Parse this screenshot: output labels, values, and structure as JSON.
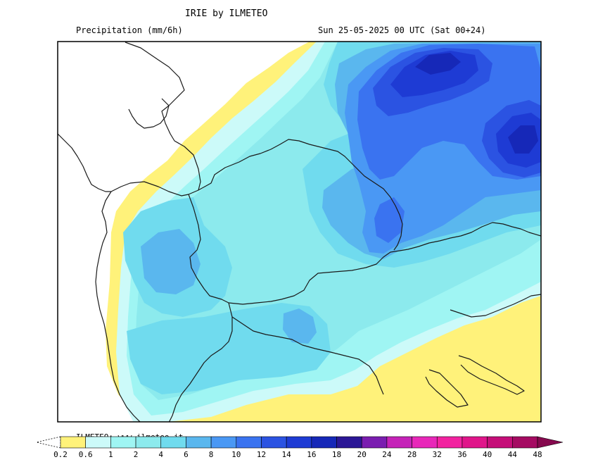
{
  "header": {
    "title": "IRIE by ILMETEO",
    "subtitle_left": "Precipitation (mm/6h)",
    "subtitle_right": "Sun 25-05-2025 00 UTC (Sat 00+24)"
  },
  "footer": {
    "watermark": "ILMETEO: www.ilmeteo.it"
  },
  "legend": {
    "ticks": [
      "0.2",
      "0.6",
      "1",
      "2",
      "4",
      "6",
      "8",
      "10",
      "12",
      "14",
      "16",
      "18",
      "20",
      "24",
      "28",
      "32",
      "36",
      "40",
      "44",
      "48"
    ],
    "colors": [
      "#fff27a",
      "#ccfaf9",
      "#9ff5f3",
      "#8ceaed",
      "#70dbee",
      "#5ab7ee",
      "#4a98f4",
      "#3a73f0",
      "#2b53e2",
      "#1e3bd4",
      "#1628b8",
      "#2b1796",
      "#7a1db0",
      "#c523b8",
      "#e827b9",
      "#f222a0",
      "#e0158a",
      "#c50e78",
      "#a50b62",
      "#86094e"
    ]
  },
  "map": {
    "colors": {
      "background": "#ffffff",
      "yellow": "#fff27a",
      "very_light_cyan": "#ccfaf9",
      "light_cyan": "#9ff5f3",
      "cyan": "#8ceaed",
      "mid_cyan": "#70dbee",
      "sky_blue": "#5ab7ee",
      "blue": "#4a98f4",
      "royal_blue": "#3a73f0",
      "deep_blue": "#2b53e2",
      "dark_blue": "#1e3bd4",
      "navy": "#1628b8",
      "border_line": "#1a1a1a"
    }
  }
}
